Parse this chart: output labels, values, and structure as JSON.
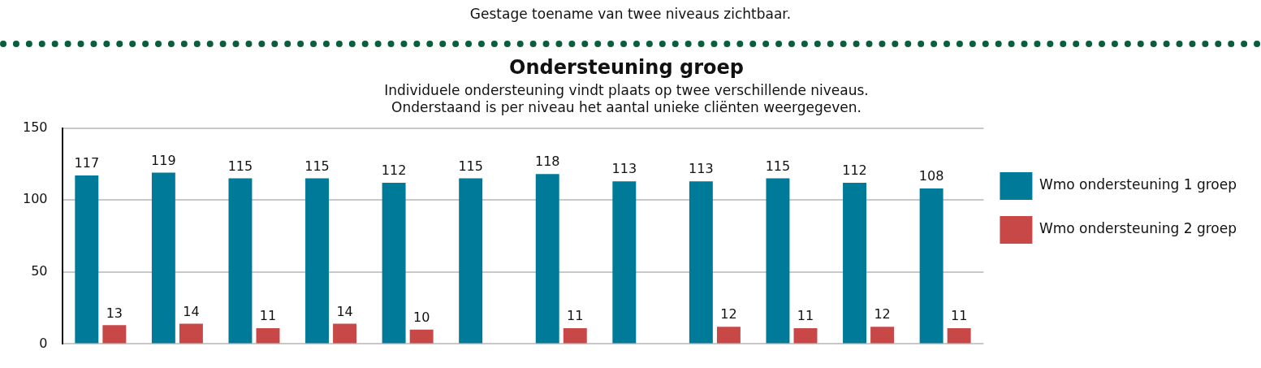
{
  "chart_data": {
    "type": "bar",
    "title": "Ondersteuning groep",
    "subtitle": "Individuele ondersteuning vindt plaats op twee verschillende niveaus.\nOnderstaand is per niveau het aantal unieke cliënten weergegeven.",
    "annotations": [
      "Gestage toename van twee niveaus zichtbaar."
    ],
    "categories": [
      null,
      null,
      null,
      null,
      null,
      null,
      null,
      null,
      null,
      null,
      null,
      null
    ],
    "series": [
      {
        "name": "Wmo ondersteuning 1 groep",
        "color": "#007a99",
        "values": [
          117,
          119,
          115,
          115,
          112,
          115,
          118,
          113,
          113,
          115,
          112,
          108
        ]
      },
      {
        "name": "Wmo ondersteuning 2 groep",
        "color": "#c84848",
        "values": [
          13,
          14,
          11,
          14,
          10,
          null,
          11,
          null,
          12,
          11,
          12,
          11
        ]
      }
    ],
    "ylim": [
      0,
      150
    ],
    "yticks": [
      0,
      50,
      100,
      150
    ],
    "grid": "y",
    "legend": "right",
    "data_labels": true
  }
}
